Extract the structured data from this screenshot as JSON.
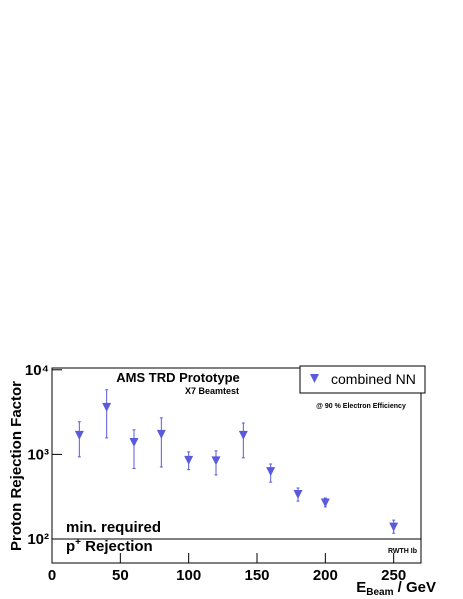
{
  "chart_data": {
    "type": "scatter",
    "title": "AMS TRD Prototype",
    "subtitle": "X7 Beamtest",
    "annotations": {
      "efficiency": "@ 90 % Electron Efficiency",
      "institute": "RWTH Ib"
    },
    "xlabel": {
      "main": "E",
      "sub": "Beam",
      "rest": " / GeV"
    },
    "ylabel": "Proton Rejection Factor",
    "x": [
      20,
      40,
      60,
      80,
      100,
      120,
      140,
      160,
      180,
      200,
      250
    ],
    "series": [
      {
        "name": "combined NN",
        "color": "#5a5adc",
        "values": [
          1700,
          3650,
          1400,
          1750,
          860,
          850,
          1700,
          635,
          340,
          270,
          140
        ],
        "upper": [
          2430,
          5800,
          1950,
          2700,
          1070,
          1100,
          2350,
          770,
          400,
          305,
          167
        ],
        "lower": [
          935,
          1570,
          680,
          710,
          660,
          570,
          910,
          470,
          280,
          240,
          117
        ]
      }
    ],
    "reference_line": {
      "value": 100,
      "label": "min. required",
      "below_label": {
        "main": "p",
        "sup": "+",
        "rest": " Rejection"
      }
    },
    "xlim": [
      0,
      270
    ],
    "xticks": [
      0,
      50,
      100,
      150,
      200,
      250
    ],
    "ylim": [
      52,
      10500
    ],
    "yticks": [
      {
        "value": 100,
        "label": "10²"
      },
      {
        "value": 1000,
        "label": "10³"
      },
      {
        "value": 10000,
        "label": "10⁴"
      }
    ],
    "log_y": true,
    "legend": "top-right"
  }
}
